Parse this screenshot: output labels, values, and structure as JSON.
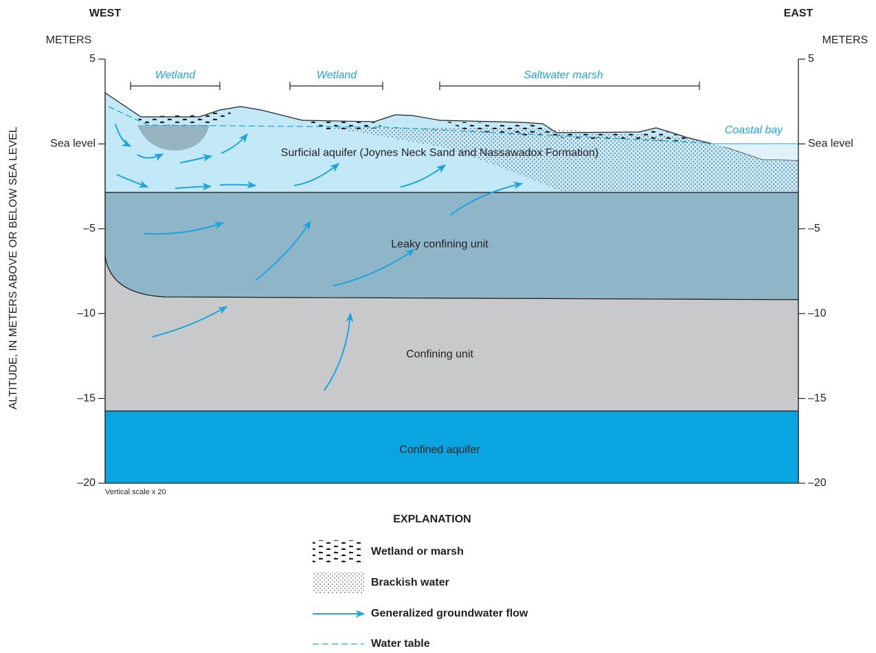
{
  "directions": {
    "west": "WEST",
    "east": "EAST"
  },
  "axes": {
    "left_unit": "METERS",
    "right_unit": "METERS",
    "y_label": "ALTITUDE, IN METERS ABOVE OR BELOW SEA LEVEL",
    "left_ticks": [
      "5",
      "Sea level",
      "–5",
      "–10",
      "–15",
      "–20"
    ],
    "right_ticks": [
      "5",
      "Sea level",
      "–5",
      "–10",
      "–15",
      "–20"
    ]
  },
  "features": [
    "Wetland",
    "Wetland",
    "Saltwater marsh"
  ],
  "coastal_bay": "Coastal bay",
  "units": [
    "Surficial aquifer (Joynes Neck Sand and Nassawadox Formation)",
    "Leaky confining unit",
    "Confining unit",
    "Confined aquifer"
  ],
  "scale_note": "Vertical scale x 20",
  "explanation": {
    "title": "EXPLANATION",
    "items": [
      "Wetland or marsh",
      "Brackish water",
      "Generalized groundwater flow",
      "Water table"
    ]
  }
}
